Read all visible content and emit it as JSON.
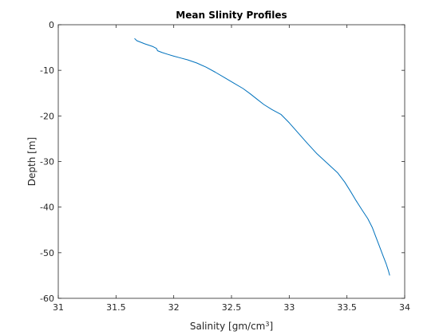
{
  "chart_data": {
    "type": "line",
    "title": "Mean Slinity Profiles",
    "xlabel": "Salinity [gm/cm",
    "xlabel_superscript": "3",
    "xlabel_suffix": "]",
    "ylabel": "Depth [m]",
    "xlim": [
      31,
      34
    ],
    "ylim": [
      -60,
      0
    ],
    "xticks": [
      31,
      31.5,
      32,
      32.5,
      33,
      33.5,
      34
    ],
    "xtick_labels": [
      "31",
      "31.5",
      "32",
      "32.5",
      "33",
      "33.5",
      "34"
    ],
    "yticks": [
      0,
      -10,
      -20,
      -30,
      -40,
      -50,
      -60
    ],
    "ytick_labels": [
      "0",
      "-10",
      "-20",
      "-30",
      "-40",
      "-50",
      "-60"
    ],
    "grid": false,
    "series": [
      {
        "color": "#0072bd",
        "x": [
          31.66,
          31.68,
          31.75,
          31.82,
          31.85,
          31.86,
          31.9,
          31.95,
          32.0,
          32.06,
          32.12,
          32.2,
          32.28,
          32.36,
          32.44,
          32.52,
          32.6,
          32.66,
          32.72,
          32.78,
          32.85,
          32.93,
          33.0,
          33.08,
          33.16,
          33.24,
          33.33,
          33.42,
          33.48,
          33.53,
          33.58,
          33.63,
          33.68,
          33.72,
          33.75,
          33.78,
          33.81,
          33.84,
          33.86,
          33.87
        ],
        "y": [
          -3,
          -3.5,
          -4.2,
          -4.8,
          -5.2,
          -5.7,
          -6.1,
          -6.5,
          -6.9,
          -7.3,
          -7.7,
          -8.4,
          -9.3,
          -10.4,
          -11.6,
          -12.8,
          -14.0,
          -15.1,
          -16.3,
          -17.5,
          -18.6,
          -19.7,
          -21.5,
          -23.8,
          -26.1,
          -28.3,
          -30.4,
          -32.5,
          -34.5,
          -36.5,
          -38.6,
          -40.6,
          -42.5,
          -44.5,
          -46.5,
          -48.5,
          -50.5,
          -52.5,
          -54.0,
          -55.0
        ]
      }
    ]
  }
}
